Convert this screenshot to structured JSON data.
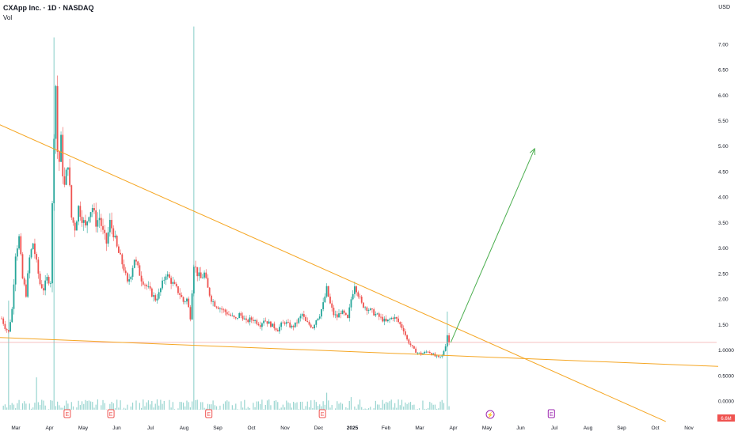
{
  "header": {
    "symbol_title": "CXApp Inc. · 1D · NASDAQ",
    "vol_label": "Vol",
    "currency": "USD"
  },
  "chart_data": {
    "type": "candlestick",
    "x_labels": [
      "Mar",
      "Apr",
      "May",
      "Jun",
      "Jul",
      "Aug",
      "Sep",
      "Oct",
      "Nov",
      "Dec",
      "2025",
      "Feb",
      "Mar",
      "Apr",
      "May",
      "Jun",
      "Jul",
      "Aug",
      "Sep",
      "Oct",
      "Nov"
    ],
    "y_ticks": [
      "7.00",
      "6.50",
      "6.00",
      "5.50",
      "5.00",
      "4.50",
      "4.00",
      "3.50",
      "3.00",
      "2.50",
      "2.00",
      "1.50",
      "1.0000",
      "0.5000",
      "0.0000"
    ],
    "y_range": [
      -0.2,
      7.4
    ],
    "last_price_badge": "6.6M",
    "colors": {
      "up": "#26a69a",
      "down": "#ef5350",
      "trendline": "#f5a623",
      "projection": "#4caf50",
      "last_price_line": "#ef9a9a"
    },
    "price_path": [
      [
        0,
        1.62
      ],
      [
        2,
        1.45
      ],
      [
        4,
        1.35
      ],
      [
        6,
        1.8
      ],
      [
        8,
        2.9
      ],
      [
        10,
        3.2
      ],
      [
        12,
        2.4
      ],
      [
        14,
        2.1
      ],
      [
        16,
        2.8
      ],
      [
        18,
        3.1
      ],
      [
        20,
        2.7
      ],
      [
        22,
        2.3
      ],
      [
        24,
        2.2
      ],
      [
        26,
        2.4
      ],
      [
        28,
        2.35
      ],
      [
        30,
        5.3
      ],
      [
        31,
        6.2
      ],
      [
        32,
        4.9
      ],
      [
        33,
        4.7
      ],
      [
        34,
        5.1
      ],
      [
        35,
        4.5
      ],
      [
        36,
        4.2
      ],
      [
        38,
        4.7
      ],
      [
        40,
        3.6
      ],
      [
        42,
        3.4
      ],
      [
        44,
        3.8
      ],
      [
        46,
        3.6
      ],
      [
        48,
        3.4
      ],
      [
        50,
        3.7
      ],
      [
        52,
        3.8
      ],
      [
        54,
        3.5
      ],
      [
        56,
        3.6
      ],
      [
        58,
        3.3
      ],
      [
        60,
        3.1
      ],
      [
        62,
        3.5
      ],
      [
        64,
        3.3
      ],
      [
        66,
        3.0
      ],
      [
        68,
        2.8
      ],
      [
        70,
        2.6
      ],
      [
        72,
        2.3
      ],
      [
        74,
        2.5
      ],
      [
        76,
        2.8
      ],
      [
        78,
        2.6
      ],
      [
        80,
        2.4
      ],
      [
        82,
        2.3
      ],
      [
        84,
        2.2
      ],
      [
        86,
        2.1
      ],
      [
        88,
        2.0
      ],
      [
        90,
        2.1
      ],
      [
        92,
        2.3
      ],
      [
        94,
        2.5
      ],
      [
        96,
        2.4
      ],
      [
        98,
        2.3
      ],
      [
        100,
        2.2
      ],
      [
        102,
        2.1
      ],
      [
        104,
        1.95
      ],
      [
        106,
        2.0
      ],
      [
        108,
        1.65
      ],
      [
        110,
        2.7
      ],
      [
        112,
        2.5
      ],
      [
        114,
        2.4
      ],
      [
        116,
        2.5
      ],
      [
        118,
        2.2
      ],
      [
        120,
        2.0
      ],
      [
        122,
        1.9
      ],
      [
        124,
        1.85
      ],
      [
        126,
        1.8
      ],
      [
        128,
        1.75
      ],
      [
        130,
        1.7
      ],
      [
        132,
        1.65
      ],
      [
        134,
        1.6
      ],
      [
        136,
        1.7
      ],
      [
        138,
        1.65
      ],
      [
        140,
        1.55
      ],
      [
        142,
        1.6
      ],
      [
        144,
        1.6
      ],
      [
        146,
        1.55
      ],
      [
        148,
        1.5
      ],
      [
        150,
        1.6
      ],
      [
        152,
        1.55
      ],
      [
        154,
        1.5
      ],
      [
        156,
        1.45
      ],
      [
        158,
        1.4
      ],
      [
        160,
        1.5
      ],
      [
        162,
        1.55
      ],
      [
        164,
        1.5
      ],
      [
        166,
        1.45
      ],
      [
        168,
        1.5
      ],
      [
        170,
        1.6
      ],
      [
        172,
        1.7
      ],
      [
        174,
        1.55
      ],
      [
        176,
        1.5
      ],
      [
        178,
        1.45
      ],
      [
        180,
        1.6
      ],
      [
        182,
        1.7
      ],
      [
        184,
        1.9
      ],
      [
        186,
        2.2
      ],
      [
        188,
        1.9
      ],
      [
        190,
        1.7
      ],
      [
        192,
        1.65
      ],
      [
        194,
        1.75
      ],
      [
        196,
        1.7
      ],
      [
        198,
        1.6
      ],
      [
        200,
        2.0
      ],
      [
        202,
        2.3
      ],
      [
        204,
        2.1
      ],
      [
        206,
        1.9
      ],
      [
        208,
        1.85
      ],
      [
        210,
        1.8
      ],
      [
        212,
        1.75
      ],
      [
        214,
        1.7
      ],
      [
        216,
        1.65
      ],
      [
        218,
        1.6
      ],
      [
        220,
        1.55
      ],
      [
        222,
        1.6
      ],
      [
        224,
        1.65
      ],
      [
        226,
        1.6
      ],
      [
        228,
        1.5
      ],
      [
        230,
        1.4
      ],
      [
        232,
        1.2
      ],
      [
        234,
        1.1
      ],
      [
        236,
        1.0
      ],
      [
        238,
        0.95
      ],
      [
        240,
        0.92
      ],
      [
        242,
        0.95
      ],
      [
        244,
        0.98
      ],
      [
        246,
        0.93
      ],
      [
        248,
        0.88
      ],
      [
        250,
        0.85
      ],
      [
        252,
        0.88
      ],
      [
        254,
        1.1
      ],
      [
        255,
        1.3
      ],
      [
        256,
        1.15
      ]
    ],
    "n_days": 410,
    "volume_spikes": [
      [
        30,
        1.7
      ],
      [
        110,
        1.75
      ],
      [
        255,
        0.45
      ],
      [
        4,
        0.5
      ],
      [
        20,
        0.15
      ],
      [
        186,
        0.08
      ],
      [
        200,
        0.06
      ]
    ],
    "lines": [
      {
        "name": "upper-trendline",
        "from": [
          -3,
          5.45
        ],
        "to": [
          380,
          -0.4
        ]
      },
      {
        "name": "lower-trendline",
        "from": [
          -3,
          1.25
        ],
        "to": [
          410,
          0.68
        ]
      },
      {
        "name": "projection-arrow",
        "from": [
          257,
          1.15
        ],
        "to": [
          305,
          4.95
        ]
      }
    ],
    "events": [
      {
        "type": "earnings",
        "label": "E",
        "day": 38,
        "color": "#ef5350"
      },
      {
        "type": "earnings",
        "label": "E",
        "day": 63,
        "color": "#ef5350"
      },
      {
        "type": "earnings",
        "label": "E",
        "day": 119,
        "color": "#ef5350"
      },
      {
        "type": "earnings",
        "label": "E",
        "day": 184,
        "color": "#ef5350"
      },
      {
        "type": "split",
        "label": "⚡",
        "day": 280,
        "color": "#9c27b0"
      },
      {
        "type": "earnings",
        "label": "E",
        "day": 315,
        "color": "#9c27b0"
      }
    ]
  }
}
